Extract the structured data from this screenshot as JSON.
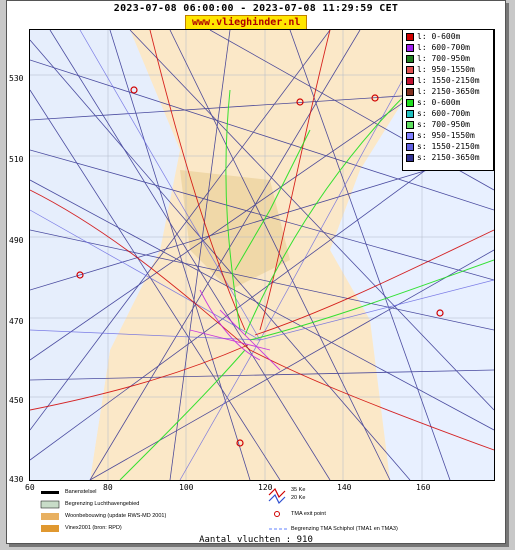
{
  "title": "2023-07-08 06:00:00 - 2023-07-08 11:29:59 CET",
  "brand": "www.vlieghinder.nl",
  "y_ticks": [
    "530",
    "510",
    "490",
    "470",
    "450",
    "430"
  ],
  "x_ticks": [
    "60",
    "80",
    "100",
    "120",
    "140",
    "160"
  ],
  "legend": [
    {
      "label": "l: 0-600m",
      "color": "#d00000"
    },
    {
      "label": "l: 600-700m",
      "color": "#a020f0"
    },
    {
      "label": "l: 700-950m",
      "color": "#208020"
    },
    {
      "label": "l: 950-1550m",
      "color": "#e05050"
    },
    {
      "label": "l: 1550-2150m",
      "color": "#c01030"
    },
    {
      "label": "l: 2150-3650m",
      "color": "#803020"
    },
    {
      "label": "s: 0-600m",
      "color": "#20e020"
    },
    {
      "label": "s: 600-700m",
      "color": "#20c0c0"
    },
    {
      "label": "s: 700-950m",
      "color": "#60e060"
    },
    {
      "label": "s: 950-1550m",
      "color": "#8080ff"
    },
    {
      "label": "s: 1550-2150m",
      "color": "#6060e0"
    },
    {
      "label": "s: 2150-3650m",
      "color": "#303090"
    }
  ],
  "key": {
    "runway": "Banenstelsel",
    "airspace": "Begrenzing Luchthavengebied",
    "housing": "Woonbebouwing (update RWS-MD 2001)",
    "vinex": "Vinex2001 (bron: RPD)",
    "noise_35": "35 Ke",
    "noise_20": "20 Ke",
    "tma_exit": "TMA exit point",
    "tma_border": "Begrenzing TMA Schiphol  (TMA1 en TMA3)"
  },
  "flight_count": "Aantal vluchten : 910"
}
